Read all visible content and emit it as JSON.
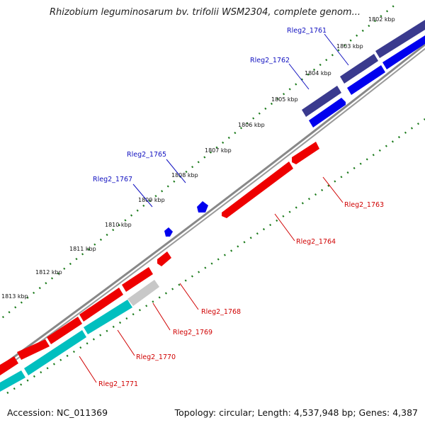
{
  "title": "Rhizobium leguminosarum bv. trifolii WSM2304, complete genom...",
  "footer": {
    "accession": "Accession: NC_011369",
    "summary": "Topology: circular; Length: 4,537,948 bp; Genes: 4,387"
  },
  "kbp_ticks": [
    "1802 kbp",
    "1803 kbp",
    "1804 kbp",
    "1805 kbp",
    "1806 kbp",
    "1807 kbp",
    "1808 kbp",
    "1809 kbp",
    "1810 kbp",
    "1811 kbp",
    "1812 kbp",
    "1813 kbp"
  ],
  "genes": [
    {
      "label": "Rleg2_1761",
      "strand": "forward"
    },
    {
      "label": "Rleg2_1762",
      "strand": "forward"
    },
    {
      "label": "Rleg2_1765",
      "strand": "forward"
    },
    {
      "label": "Rleg2_1767",
      "strand": "forward"
    },
    {
      "label": "Rleg2_1763",
      "strand": "reverse"
    },
    {
      "label": "Rleg2_1764",
      "strand": "reverse"
    },
    {
      "label": "Rleg2_1768",
      "strand": "reverse"
    },
    {
      "label": "Rleg2_1769",
      "strand": "reverse"
    },
    {
      "label": "Rleg2_1770",
      "strand": "reverse"
    },
    {
      "label": "Rleg2_1771",
      "strand": "reverse"
    }
  ],
  "colors": {
    "forward_gene": "#0000ee",
    "forward_cds": "#3a3a8e",
    "reverse_gene": "#ee0000",
    "reverse_cds": "#00bfbf",
    "pseudo_gene": "#c0c0c0",
    "backbone": "#8a8a8a",
    "tick": "#1a7a1a",
    "forward_label": "#1010c0",
    "reverse_label": "#d00000"
  }
}
